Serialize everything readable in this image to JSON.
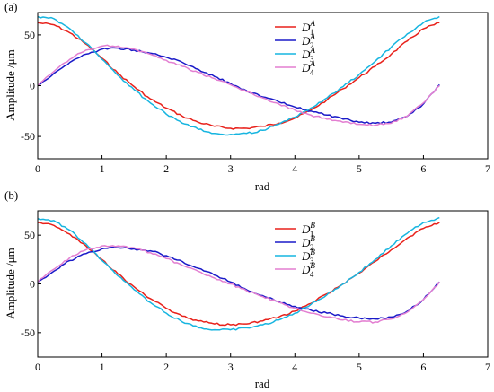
{
  "chart_data": [
    {
      "type": "line",
      "panel_label": "(a)",
      "xlabel": "rad",
      "ylabel": "Amplitude /μm",
      "xlim": [
        0,
        7
      ],
      "ylim": [
        -72,
        72
      ],
      "xticks": [
        0,
        1,
        2,
        3,
        4,
        5,
        6,
        7
      ],
      "yticks": [
        -50,
        0,
        50
      ],
      "legend_position": "top-right",
      "series": [
        {
          "name": "D1A",
          "base": "D",
          "sub": "1",
          "sup": "A",
          "color": "#e8211b",
          "x": [
            0,
            0.25,
            0.5,
            0.75,
            1.0,
            1.25,
            1.5,
            1.75,
            2.0,
            2.25,
            2.5,
            2.75,
            3.0,
            3.25,
            3.5,
            3.75,
            4.0,
            4.25,
            4.5,
            4.75,
            5.0,
            5.25,
            5.5,
            5.75,
            6.0,
            6.25
          ],
          "y": [
            62,
            60,
            52,
            41,
            27,
            12,
            -1,
            -13,
            -22,
            -30,
            -36,
            -40,
            -42,
            -42,
            -40,
            -37,
            -32,
            -24,
            -14,
            -3,
            8,
            19,
            31,
            44,
            56,
            62
          ]
        },
        {
          "name": "D2A",
          "base": "D",
          "sub": "2",
          "sup": "A",
          "color": "#1a1ac8",
          "x": [
            0,
            0.25,
            0.5,
            0.75,
            1.0,
            1.25,
            1.5,
            1.75,
            2.0,
            2.25,
            2.5,
            2.75,
            3.0,
            3.25,
            3.5,
            3.75,
            4.0,
            4.25,
            4.5,
            4.75,
            5.0,
            5.25,
            5.5,
            5.75,
            6.0,
            6.25
          ],
          "y": [
            0,
            12,
            23,
            31,
            36,
            37,
            35,
            32,
            28,
            23,
            16,
            9,
            2,
            -5,
            -11,
            -16,
            -21,
            -25,
            -29,
            -33,
            -36,
            -37,
            -36,
            -30,
            -18,
            1
          ]
        },
        {
          "name": "D3A",
          "base": "D",
          "sub": "3",
          "sup": "A",
          "color": "#17b5e0",
          "x": [
            0,
            0.25,
            0.5,
            0.75,
            1.0,
            1.25,
            1.5,
            1.75,
            2.0,
            2.25,
            2.5,
            2.75,
            3.0,
            3.25,
            3.5,
            3.75,
            4.0,
            4.25,
            4.5,
            4.75,
            5.0,
            5.25,
            5.5,
            5.75,
            6.0,
            6.25
          ],
          "y": [
            68,
            66,
            56,
            42,
            26,
            10,
            -4,
            -17,
            -28,
            -37,
            -43,
            -47,
            -48,
            -47,
            -44,
            -38,
            -31,
            -22,
            -12,
            -1,
            11,
            24,
            38,
            51,
            62,
            68
          ]
        },
        {
          "name": "D4A",
          "base": "D",
          "sub": "4",
          "sup": "A",
          "color": "#e37fd1",
          "x": [
            0,
            0.25,
            0.5,
            0.75,
            1.0,
            1.25,
            1.5,
            1.75,
            2.0,
            2.25,
            2.5,
            2.75,
            3.0,
            3.25,
            3.5,
            3.75,
            4.0,
            4.25,
            4.5,
            4.75,
            5.0,
            5.25,
            5.5,
            5.75,
            6.0,
            6.25
          ],
          "y": [
            0,
            14,
            26,
            35,
            39,
            39,
            36,
            31,
            25,
            19,
            13,
            7,
            1,
            -6,
            -12,
            -18,
            -24,
            -29,
            -33,
            -36,
            -38,
            -39,
            -37,
            -30,
            -17,
            0
          ]
        }
      ]
    },
    {
      "type": "line",
      "panel_label": "(b)",
      "xlabel": "rad",
      "ylabel": "Amplitude /μm",
      "xlim": [
        0,
        7
      ],
      "ylim": [
        -75,
        75
      ],
      "xticks": [
        0,
        1,
        2,
        3,
        4,
        5,
        6,
        7
      ],
      "yticks": [
        -50,
        0,
        50
      ],
      "legend_position": "top-right",
      "series": [
        {
          "name": "D1B",
          "base": "D",
          "sub": "1",
          "sup": "B",
          "color": "#e8211b",
          "x": [
            0,
            0.25,
            0.5,
            0.75,
            1.0,
            1.25,
            1.5,
            1.75,
            2.0,
            2.25,
            2.5,
            2.75,
            3.0,
            3.25,
            3.5,
            3.75,
            4.0,
            4.25,
            4.5,
            4.75,
            5.0,
            5.25,
            5.5,
            5.75,
            6.0,
            6.25
          ],
          "y": [
            63,
            60,
            51,
            39,
            25,
            10,
            -3,
            -15,
            -25,
            -33,
            -38,
            -41,
            -42,
            -41,
            -38,
            -34,
            -28,
            -20,
            -10,
            0,
            11,
            23,
            35,
            47,
            57,
            63
          ]
        },
        {
          "name": "D2B",
          "base": "D",
          "sub": "2",
          "sup": "B",
          "color": "#1a1ac8",
          "x": [
            0,
            0.25,
            0.5,
            0.75,
            1.0,
            1.25,
            1.5,
            1.75,
            2.0,
            2.25,
            2.5,
            2.75,
            3.0,
            3.25,
            3.5,
            3.75,
            4.0,
            4.25,
            4.5,
            4.75,
            5.0,
            5.25,
            5.5,
            5.75,
            6.0,
            6.25
          ],
          "y": [
            2,
            13,
            24,
            31,
            36,
            37,
            36,
            34,
            29,
            23,
            16,
            9,
            2,
            -6,
            -12,
            -18,
            -23,
            -27,
            -30,
            -33,
            -35,
            -36,
            -34,
            -28,
            -16,
            2
          ]
        },
        {
          "name": "D3B",
          "base": "D",
          "sub": "3",
          "sup": "B",
          "color": "#17b5e0",
          "x": [
            0,
            0.25,
            0.5,
            0.75,
            1.0,
            1.25,
            1.5,
            1.75,
            2.0,
            2.25,
            2.5,
            2.75,
            3.0,
            3.25,
            3.5,
            3.75,
            4.0,
            4.25,
            4.5,
            4.75,
            5.0,
            5.25,
            5.5,
            5.75,
            6.0,
            6.25
          ],
          "y": [
            67,
            65,
            55,
            41,
            24,
            8,
            -6,
            -19,
            -30,
            -39,
            -45,
            -47,
            -47,
            -45,
            -42,
            -37,
            -30,
            -21,
            -11,
            0,
            12,
            25,
            39,
            52,
            63,
            68
          ]
        },
        {
          "name": "D4B",
          "base": "D",
          "sub": "4",
          "sup": "B",
          "color": "#e37fd1",
          "x": [
            0,
            0.25,
            0.5,
            0.75,
            1.0,
            1.25,
            1.5,
            1.75,
            2.0,
            2.25,
            2.5,
            2.75,
            3.0,
            3.25,
            3.5,
            3.75,
            4.0,
            4.25,
            4.5,
            4.75,
            5.0,
            5.25,
            5.5,
            5.75,
            6.0,
            6.25
          ],
          "y": [
            2,
            15,
            27,
            35,
            39,
            39,
            37,
            32,
            26,
            19,
            13,
            6,
            0,
            -7,
            -13,
            -19,
            -25,
            -30,
            -34,
            -37,
            -39,
            -39,
            -36,
            -29,
            -16,
            2
          ]
        }
      ]
    }
  ]
}
